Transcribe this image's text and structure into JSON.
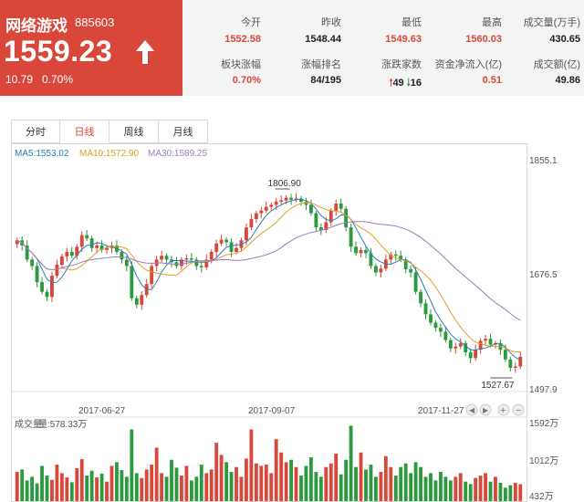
{
  "quote": {
    "name": "网络游戏",
    "code": "885603",
    "price": "1559.23",
    "change": "10.79",
    "change_pct": "0.70%",
    "trend": "up",
    "accent_color": "#d9473a"
  },
  "stats": [
    {
      "label": "今开",
      "value": "1552.58",
      "tone": "red"
    },
    {
      "label": "昨收",
      "value": "1548.44",
      "tone": "dark"
    },
    {
      "label": "最低",
      "value": "1549.63",
      "tone": "red"
    },
    {
      "label": "最高",
      "value": "1560.03",
      "tone": "red"
    },
    {
      "label": "成交量(万手)",
      "value": "430.65",
      "tone": "dark"
    },
    {
      "label": "板块涨幅",
      "value": "0.70%",
      "tone": "red"
    },
    {
      "label": "涨幅排名",
      "value": "84/195",
      "tone": "dark"
    },
    {
      "label": "涨跌家数",
      "value": "",
      "tone": "dark"
    },
    {
      "label": "资金净流入(亿)",
      "value": "0.51",
      "tone": "red"
    },
    {
      "label": "成交额(亿)",
      "value": "49.86",
      "tone": "dark"
    }
  ],
  "advance_decline": {
    "up": "49",
    "down": "16"
  },
  "tabs": [
    {
      "label": "分时",
      "active": false
    },
    {
      "label": "日线",
      "active": true
    },
    {
      "label": "周线",
      "active": false
    },
    {
      "label": "月线",
      "active": false
    }
  ],
  "chart_data": {
    "type": "candlestick",
    "ma_legend": [
      {
        "text": "MA5:1553.02",
        "color": "#2a7fb8"
      },
      {
        "text": "MA10:1572.90",
        "color": "#e0a020"
      },
      {
        "text": "MA30:1589.25",
        "color": "#9a7cc0"
      }
    ],
    "y_ticks": [
      "1855.1",
      "1676.5",
      "1497.9"
    ],
    "ylim": [
      1497.9,
      1855.1
    ],
    "x_ticks": [
      "2017-06-27",
      "2017-09-07",
      "2017-11-27"
    ],
    "annotations": {
      "high": "1806.90",
      "low": "1527.67"
    },
    "closes": [
      1730,
      1722,
      1700,
      1690,
      1665,
      1650,
      1642,
      1675,
      1692,
      1705,
      1712,
      1706,
      1720,
      1738,
      1733,
      1718,
      1722,
      1715,
      1718,
      1722,
      1712,
      1700,
      1690,
      1640,
      1630,
      1645,
      1662,
      1690,
      1700,
      1706,
      1700,
      1696,
      1690,
      1700,
      1702,
      1700,
      1690,
      1688,
      1700,
      1712,
      1725,
      1731,
      1727,
      1712,
      1718,
      1730,
      1750,
      1763,
      1772,
      1776,
      1782,
      1785,
      1790,
      1792,
      1796,
      1793,
      1795,
      1790,
      1785,
      1772,
      1750,
      1746,
      1758,
      1776,
      1787,
      1779,
      1750,
      1720,
      1710,
      1715,
      1710,
      1690,
      1680,
      1686,
      1700,
      1708,
      1706,
      1700,
      1685,
      1680,
      1650,
      1632,
      1615,
      1602,
      1594,
      1588,
      1575,
      1562,
      1565,
      1570,
      1556,
      1547,
      1560,
      1574,
      1577,
      1568,
      1570,
      1560,
      1545,
      1532,
      1534,
      1549
    ],
    "volume": {
      "title": "成交量",
      "value_label": "量:578.33万",
      "y_ticks": [
        "1592万",
        "1012万",
        "432万"
      ],
      "ylim": [
        300,
        1592
      ],
      "values": [
        780,
        820,
        640,
        700,
        590,
        880,
        720,
        650,
        900,
        760,
        690,
        610,
        840,
        990,
        720,
        800,
        690,
        750,
        620,
        880,
        940,
        810,
        700,
        1480,
        760,
        680,
        820,
        900,
        1180,
        760,
        700,
        980,
        850,
        720,
        880,
        640,
        700,
        900,
        760,
        820,
        1260,
        1060,
        940,
        780,
        860,
        700,
        1000,
        1480,
        920,
        880,
        900,
        760,
        1320,
        1100,
        940,
        980,
        860,
        720,
        880,
        1020,
        780,
        700,
        860,
        920,
        1080,
        740,
        980,
        1540,
        860,
        1100,
        820,
        900,
        700,
        780,
        1040,
        860,
        720,
        860,
        920,
        760,
        940,
        860,
        700,
        760,
        640,
        780,
        700,
        640,
        700,
        760,
        620,
        580,
        680,
        720,
        760,
        620,
        700,
        600,
        520,
        560,
        600,
        578
      ]
    }
  }
}
